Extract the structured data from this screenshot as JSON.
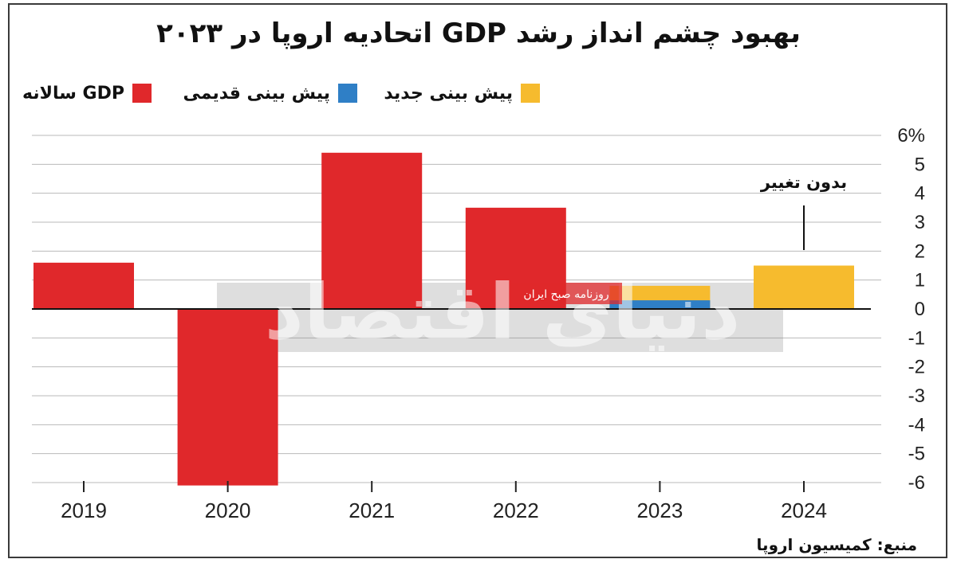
{
  "title": "بهبود چشم انداز رشد GDP اتحادیه اروپا در ۲۰۲۳",
  "legend": [
    {
      "label": "GDP سالانه",
      "color": "#e0282b"
    },
    {
      "label": "پیش بینی قدیمی",
      "color": "#2f7fc6"
    },
    {
      "label": "پیش بینی جدید",
      "color": "#f6bb2e"
    }
  ],
  "source": "منبع: کمیسیون اروپا",
  "watermark": {
    "brand": "دنیای اقتصاد",
    "subtitle": "روزنامه صبح ایران"
  },
  "chart_data": {
    "type": "bar",
    "categories": [
      "2019",
      "2020",
      "2021",
      "2022",
      "2023",
      "2024"
    ],
    "series": [
      {
        "name": "GDP سالانه",
        "color": "#e0282b",
        "values": [
          1.6,
          -6.1,
          5.4,
          3.5,
          null,
          null
        ]
      },
      {
        "name": "پیش بینی قدیمی",
        "color": "#2f7fc6",
        "values": [
          null,
          null,
          null,
          null,
          0.3,
          null
        ]
      },
      {
        "name": "پیش بینی جدید",
        "color": "#f6bb2e",
        "values": [
          null,
          null,
          null,
          null,
          0.8,
          1.5
        ]
      }
    ],
    "y_tick_labels": [
      "6%",
      "5",
      "4",
      "3",
      "2",
      "1",
      "0",
      "-1",
      "-2",
      "-3",
      "-4",
      "-5",
      "-6"
    ],
    "ylim": [
      -6,
      6
    ],
    "y_axis_side": "right",
    "grid": true,
    "annotations": [
      {
        "text": "بدون تغییر",
        "category": "2024"
      }
    ]
  }
}
